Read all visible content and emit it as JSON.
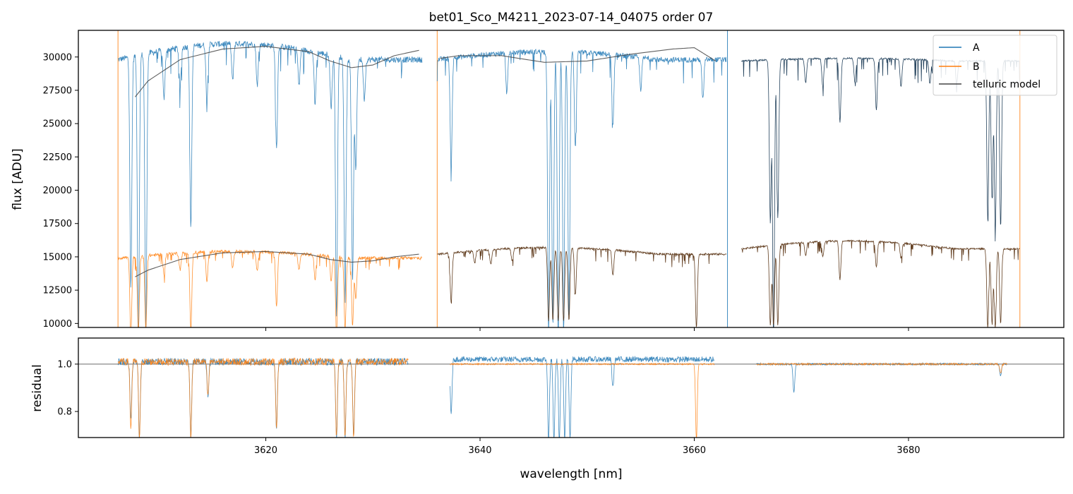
{
  "chart_data": [
    {
      "type": "line",
      "panel": "top",
      "title": "bet01_Sco_M4211_2023-07-14_04075  order 07",
      "xlabel": "",
      "ylabel": "flux [ADU]",
      "xlim": [
        3602.5,
        3694.5
      ],
      "ylim": [
        9700,
        32000
      ],
      "x_ticks": [
        3620,
        3640,
        3660,
        3680
      ],
      "y_ticks": [
        10000,
        12500,
        15000,
        17500,
        20000,
        22500,
        25000,
        27500,
        30000
      ],
      "y_tick_labels": [
        "10000",
        "12500",
        "15000",
        "17500",
        "20000",
        "22500",
        "25000",
        "27500",
        "30000"
      ],
      "legend_position": "top-right",
      "legend": [
        {
          "label": "A",
          "color": "#1f77b4"
        },
        {
          "label": "B",
          "color": "#ff7f0e"
        },
        {
          "label": "telluric model",
          "color": "#444444"
        }
      ],
      "vertical_marks": [
        {
          "x": 3606.2,
          "color": "#ff7f0e"
        },
        {
          "x": 3636.0,
          "color": "#ff7f0e"
        },
        {
          "x": 3663.1,
          "color": "#1f77b4"
        },
        {
          "x": 3690.4,
          "color": "#ff7f0e"
        }
      ],
      "series": [
        {
          "name": "A",
          "color": "#1f77b4",
          "segments": [
            {
              "x_range": [
                3606.2,
                3634.6
              ],
              "baseline": 29800,
              "peak": 31000,
              "noise": 450
            },
            {
              "x_range": [
                3636.0,
                3663.0
              ],
              "baseline": 29800,
              "peak": 30400,
              "noise": 400
            },
            {
              "x_range": [
                3664.4,
                3690.4
              ],
              "baseline": 29700,
              "peak": 29900,
              "noise": 120
            }
          ],
          "absorption_lines": [
            {
              "x": 3607.4,
              "depth": 0.58
            },
            {
              "x": 3608.1,
              "depth": 0.73
            },
            {
              "x": 3608.8,
              "depth": 0.7
            },
            {
              "x": 3610.5,
              "depth": 0.12
            },
            {
              "x": 3612.0,
              "depth": 0.1
            },
            {
              "x": 3613.0,
              "depth": 0.44
            },
            {
              "x": 3614.5,
              "depth": 0.14
            },
            {
              "x": 3616.9,
              "depth": 0.09
            },
            {
              "x": 3619.2,
              "depth": 0.1
            },
            {
              "x": 3621.0,
              "depth": 0.25
            },
            {
              "x": 3623.1,
              "depth": 0.09
            },
            {
              "x": 3624.6,
              "depth": 0.13
            },
            {
              "x": 3626.1,
              "depth": 0.13
            },
            {
              "x": 3626.6,
              "depth": 0.65
            },
            {
              "x": 3627.4,
              "depth": 0.6
            },
            {
              "x": 3628.1,
              "depth": 0.56
            },
            {
              "x": 3628.4,
              "depth": 0.28
            },
            {
              "x": 3629.2,
              "depth": 0.1
            },
            {
              "x": 3637.3,
              "depth": 0.27
            },
            {
              "x": 3642.5,
              "depth": 0.1
            },
            {
              "x": 3646.4,
              "depth": 0.7
            },
            {
              "x": 3646.8,
              "depth": 0.68
            },
            {
              "x": 3647.3,
              "depth": 0.72
            },
            {
              "x": 3647.8,
              "depth": 0.7
            },
            {
              "x": 3648.3,
              "depth": 0.66
            },
            {
              "x": 3648.9,
              "depth": 0.24
            },
            {
              "x": 3652.4,
              "depth": 0.18
            },
            {
              "x": 3655.0,
              "depth": 0.08
            },
            {
              "x": 3660.8,
              "depth": 0.1
            },
            {
              "x": 3667.1,
              "depth": 0.41
            },
            {
              "x": 3667.4,
              "depth": 0.7
            },
            {
              "x": 3667.8,
              "depth": 0.4
            },
            {
              "x": 3670.4,
              "depth": 0.06
            },
            {
              "x": 3672.0,
              "depth": 0.07
            },
            {
              "x": 3673.6,
              "depth": 0.16
            },
            {
              "x": 3675.0,
              "depth": 0.06
            },
            {
              "x": 3677.0,
              "depth": 0.13
            },
            {
              "x": 3679.3,
              "depth": 0.07
            },
            {
              "x": 3682.0,
              "depth": 0.06
            },
            {
              "x": 3684.5,
              "depth": 0.06
            },
            {
              "x": 3687.4,
              "depth": 0.4
            },
            {
              "x": 3687.8,
              "depth": 0.35
            },
            {
              "x": 3688.1,
              "depth": 0.43
            },
            {
              "x": 3688.6,
              "depth": 0.42
            }
          ]
        },
        {
          "name": "B",
          "color": "#ff7f0e",
          "segments": [
            {
              "x_range": [
                3606.2,
                3634.6
              ],
              "baseline": 14900,
              "peak": 15400,
              "noise": 250
            },
            {
              "x_range": [
                3636.0,
                3663.0
              ],
              "baseline": 15200,
              "peak": 15700,
              "noise": 150
            },
            {
              "x_range": [
                3664.4,
                3690.4
              ],
              "baseline": 15600,
              "peak": 16200,
              "noise": 120
            }
          ],
          "absorption_lines": [
            {
              "x": 3607.4,
              "depth": 0.4
            },
            {
              "x": 3608.1,
              "depth": 0.38
            },
            {
              "x": 3608.8,
              "depth": 0.36
            },
            {
              "x": 3610.5,
              "depth": 0.1
            },
            {
              "x": 3612.0,
              "depth": 0.08
            },
            {
              "x": 3613.0,
              "depth": 0.38
            },
            {
              "x": 3614.5,
              "depth": 0.14
            },
            {
              "x": 3616.9,
              "depth": 0.08
            },
            {
              "x": 3619.2,
              "depth": 0.09
            },
            {
              "x": 3621.0,
              "depth": 0.26
            },
            {
              "x": 3623.1,
              "depth": 0.08
            },
            {
              "x": 3624.6,
              "depth": 0.12
            },
            {
              "x": 3626.1,
              "depth": 0.12
            },
            {
              "x": 3626.6,
              "depth": 0.38
            },
            {
              "x": 3627.4,
              "depth": 0.36
            },
            {
              "x": 3628.1,
              "depth": 0.34
            },
            {
              "x": 3628.4,
              "depth": 0.2
            },
            {
              "x": 3637.3,
              "depth": 0.24
            },
            {
              "x": 3639.5,
              "depth": 0.06
            },
            {
              "x": 3641.0,
              "depth": 0.07
            },
            {
              "x": 3643.0,
              "depth": 0.06
            },
            {
              "x": 3646.4,
              "depth": 0.35
            },
            {
              "x": 3646.8,
              "depth": 0.35
            },
            {
              "x": 3647.3,
              "depth": 0.35
            },
            {
              "x": 3647.8,
              "depth": 0.35
            },
            {
              "x": 3648.3,
              "depth": 0.35
            },
            {
              "x": 3648.9,
              "depth": 0.22
            },
            {
              "x": 3652.4,
              "depth": 0.12
            },
            {
              "x": 3660.2,
              "depth": 0.36
            },
            {
              "x": 3667.1,
              "depth": 0.38
            },
            {
              "x": 3667.4,
              "depth": 0.38
            },
            {
              "x": 3667.8,
              "depth": 0.38
            },
            {
              "x": 3670.4,
              "depth": 0.06
            },
            {
              "x": 3672.0,
              "depth": 0.07
            },
            {
              "x": 3673.6,
              "depth": 0.18
            },
            {
              "x": 3677.0,
              "depth": 0.12
            },
            {
              "x": 3679.3,
              "depth": 0.07
            },
            {
              "x": 3687.4,
              "depth": 0.38
            },
            {
              "x": 3687.8,
              "depth": 0.36
            },
            {
              "x": 3688.1,
              "depth": 0.38
            },
            {
              "x": 3688.6,
              "depth": 0.36
            }
          ]
        },
        {
          "name": "telluric model",
          "color": "#444444",
          "curves": [
            {
              "x": [
                3607.8,
                3609,
                3612,
                3616,
                3620,
                3624,
                3626,
                3628,
                3630,
                3632,
                3634.3
              ],
              "y": [
                27000,
                28200,
                29800,
                30600,
                30800,
                30400,
                29700,
                29200,
                29400,
                30100,
                30500
              ]
            },
            {
              "x": [
                3636.3,
                3638,
                3642,
                3646,
                3650,
                3654,
                3658,
                3660,
                3662
              ],
              "y": [
                29900,
                30100,
                30100,
                29600,
                29700,
                30200,
                30600,
                30700,
                29700
              ]
            },
            {
              "x": [
                3607.8,
                3609,
                3612,
                3616,
                3620,
                3624,
                3626,
                3628,
                3630,
                3632,
                3634.3
              ],
              "y": [
                13500,
                14000,
                14800,
                15300,
                15400,
                15200,
                14800,
                14600,
                14700,
                15000,
                15200
              ]
            }
          ]
        }
      ]
    },
    {
      "type": "line",
      "panel": "bottom",
      "title": "",
      "xlabel": "wavelength [nm]",
      "ylabel": "residual",
      "xlim": [
        3602.5,
        3694.5
      ],
      "ylim": [
        0.69,
        1.11
      ],
      "x_ticks": [
        3620,
        3640,
        3660,
        3680
      ],
      "x_tick_labels": [
        "3620",
        "3640",
        "3660",
        "3680"
      ],
      "y_ticks": [
        0.8,
        1.0
      ],
      "y_tick_labels": [
        "0.8",
        "1.0"
      ],
      "reference_line": 1.0,
      "series": [
        {
          "name": "A",
          "color": "#1f77b4",
          "segments": [
            {
              "x_range": [
                3606.2,
                3633.3
              ],
              "baseline": 1.01,
              "noise": 0.015
            },
            {
              "x_range": [
                3637.2,
                3661.9
              ],
              "baseline": 1.02,
              "noise": 0.012
            },
            {
              "x_range": [
                3665.8,
                3689.2
              ],
              "baseline": 1.0,
              "noise": 0.004
            }
          ],
          "dips": [
            {
              "x": 3607.4,
              "depth": 0.25
            },
            {
              "x": 3608.2,
              "depth": 0.32
            },
            {
              "x": 3613.0,
              "depth": 0.32
            },
            {
              "x": 3614.6,
              "depth": 0.15
            },
            {
              "x": 3621.0,
              "depth": 0.28
            },
            {
              "x": 3626.6,
              "depth": 0.32
            },
            {
              "x": 3627.4,
              "depth": 0.32
            },
            {
              "x": 3628.2,
              "depth": 0.32
            },
            {
              "x": 3637.3,
              "depth": 0.24
            },
            {
              "x": 3646.4,
              "depth": 0.34
            },
            {
              "x": 3646.9,
              "depth": 0.34
            },
            {
              "x": 3647.4,
              "depth": 0.34
            },
            {
              "x": 3647.9,
              "depth": 0.34
            },
            {
              "x": 3648.4,
              "depth": 0.34
            },
            {
              "x": 3652.4,
              "depth": 0.12
            },
            {
              "x": 3669.3,
              "depth": 0.12
            },
            {
              "x": 3688.6,
              "depth": 0.05
            }
          ]
        },
        {
          "name": "B",
          "color": "#ff7f0e",
          "segments": [
            {
              "x_range": [
                3606.2,
                3633.3
              ],
              "baseline": 1.01,
              "noise": 0.015
            },
            {
              "x_range": [
                3637.2,
                3661.9
              ],
              "baseline": 1.0,
              "noise": 0.003
            },
            {
              "x_range": [
                3665.8,
                3689.2
              ],
              "baseline": 1.0,
              "noise": 0.004
            }
          ],
          "dips": [
            {
              "x": 3607.4,
              "depth": 0.28
            },
            {
              "x": 3608.2,
              "depth": 0.32
            },
            {
              "x": 3613.0,
              "depth": 0.32
            },
            {
              "x": 3614.6,
              "depth": 0.15
            },
            {
              "x": 3621.0,
              "depth": 0.28
            },
            {
              "x": 3626.6,
              "depth": 0.32
            },
            {
              "x": 3627.4,
              "depth": 0.32
            },
            {
              "x": 3628.2,
              "depth": 0.32
            },
            {
              "x": 3660.2,
              "depth": 0.32
            },
            {
              "x": 3688.6,
              "depth": 0.04
            }
          ]
        }
      ]
    }
  ]
}
